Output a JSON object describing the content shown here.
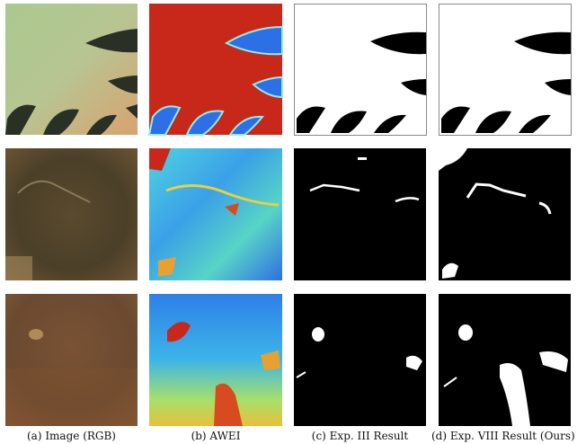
{
  "captions": [
    "(a) Image (RGB)",
    "(b) AWEI",
    "(c) Exp. III Result",
    "(d) Exp. VIII Result (Ours)"
  ]
}
